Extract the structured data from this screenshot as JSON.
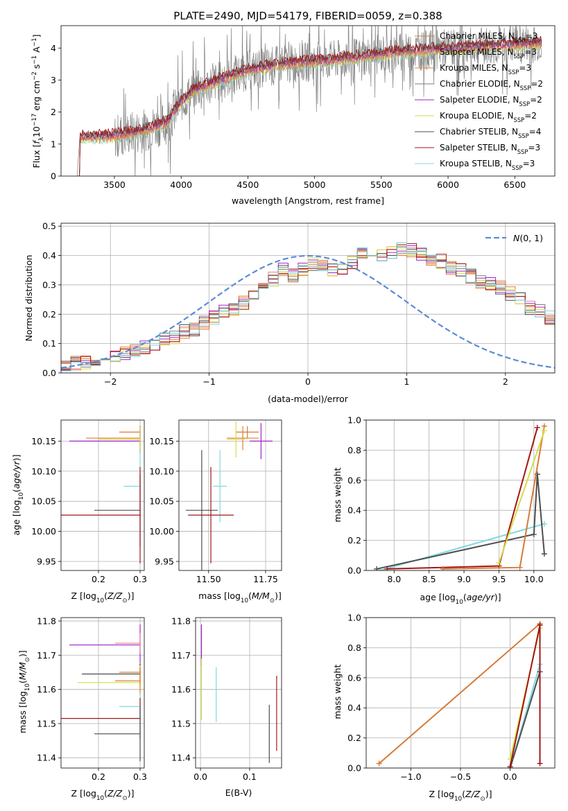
{
  "title": "PLATE=2490, MJD=54179, FIBERID=0059, z=0.388",
  "colors": {
    "chabrier_miles": "#d67a37",
    "salpeter_miles": "#e87f9a",
    "kroupa_miles": "#e07b2a",
    "chabrier_elodie": "#7b7b7b",
    "salpeter_elodie": "#a023c4",
    "kroupa_elodie": "#d6dc47",
    "chabrier_stelib": "#4d4d4d",
    "salpeter_stelib": "#a31515",
    "kroupa_stelib": "#7fd9df",
    "data": "#808080",
    "gaussian": "#5b8bd6"
  },
  "chart_data": [
    {
      "type": "line",
      "id": "spectrum",
      "title": "PLATE=2490, MJD=54179, FIBERID=0059, z=0.388",
      "xlabel": "wavelength [Angstrom, rest frame]",
      "ylabel_parts": [
        "Flux [",
        "f",
        "λ",
        "10",
        "−17",
        " erg cm",
        "−2",
        " s",
        "−1",
        " A",
        "−1",
        "]"
      ],
      "xlim": [
        3100,
        6800
      ],
      "ylim": [
        0,
        4.7
      ],
      "xticks": [
        3500,
        4000,
        4500,
        5000,
        5500,
        6000,
        6500
      ],
      "yticks": [
        0,
        1,
        2,
        3,
        4
      ],
      "legend": [
        {
          "pre": "Chabrier MILES, N",
          "sub": "SSP",
          "post": "=3",
          "color_key": "chabrier_miles"
        },
        {
          "pre": "Salpeter MILES, N",
          "sub": "SSP",
          "post": "=3",
          "color_key": "salpeter_miles"
        },
        {
          "pre": "Kroupa MILES, N",
          "sub": "SSP",
          "post": "=3",
          "color_key": "kroupa_miles"
        },
        {
          "pre": "Chabrier ELODIE, N",
          "sub": "SSP",
          "post": "=2",
          "color_key": "chabrier_elodie"
        },
        {
          "pre": "Salpeter ELODIE, N",
          "sub": "SSP",
          "post": "=2",
          "color_key": "salpeter_elodie"
        },
        {
          "pre": "Kroupa ELODIE, N",
          "sub": "SSP",
          "post": "=2",
          "color_key": "kroupa_elodie"
        },
        {
          "pre": "Chabrier STELIB, N",
          "sub": "SSP",
          "post": "=4",
          "color_key": "chabrier_stelib"
        },
        {
          "pre": "Salpeter STELIB, N",
          "sub": "SSP",
          "post": "=3",
          "color_key": "salpeter_stelib"
        },
        {
          "pre": "Kroupa STELIB, N",
          "sub": "SSP",
          "post": "=3",
          "color_key": "kroupa_stelib"
        }
      ],
      "legend_loc": "upper right",
      "continuum_model": {
        "x": [
          3220,
          3500,
          3700,
          3900,
          4000,
          4100,
          4300,
          4500,
          4700,
          4900,
          5100,
          5300,
          5500,
          5700,
          5900,
          6100,
          6300,
          6500,
          6700
        ],
        "y": [
          1.2,
          1.25,
          1.4,
          1.7,
          2.3,
          2.7,
          3.0,
          3.3,
          3.45,
          3.55,
          3.6,
          3.7,
          3.8,
          3.9,
          3.95,
          4.0,
          4.05,
          4.1,
          4.15
        ]
      }
    },
    {
      "type": "histogram",
      "id": "residuals",
      "xlabel": "(data-model)/error",
      "ylabel": "Normed distribution",
      "xlim": [
        -2.5,
        2.5
      ],
      "ylim": [
        0,
        0.51
      ],
      "xticks": [
        -2,
        -1,
        0,
        1,
        2
      ],
      "yticks": [
        0.0,
        0.1,
        0.2,
        0.3,
        0.4,
        0.5
      ],
      "grid": true,
      "legend": [
        {
          "label": "N(0, 1)",
          "style": "dashed",
          "color_key": "gaussian"
        }
      ],
      "legend_loc": "upper right",
      "bin_width": 0.1,
      "bin_start": -2.5,
      "reference_values": [
        0.03,
        0.032,
        0.035,
        0.045,
        0.05,
        0.057,
        0.065,
        0.075,
        0.085,
        0.1,
        0.115,
        0.12,
        0.14,
        0.15,
        0.17,
        0.19,
        0.21,
        0.22,
        0.24,
        0.27,
        0.29,
        0.32,
        0.35,
        0.33,
        0.35,
        0.37,
        0.36,
        0.35,
        0.36,
        0.38,
        0.41,
        0.42,
        0.4,
        0.41,
        0.42,
        0.42,
        0.4,
        0.39,
        0.38,
        0.36,
        0.35,
        0.33,
        0.31,
        0.3,
        0.29,
        0.27,
        0.25,
        0.22,
        0.21,
        0.19,
        0.18,
        0.16,
        0.14,
        0.13,
        0.12,
        0.1,
        0.09,
        0.08,
        0.07,
        0.06,
        0.055,
        0.05,
        0.045,
        0.04,
        0.035,
        0.03,
        0.03,
        0.028,
        0.027,
        0.026,
        0.025,
        0.025,
        0.025
      ]
    },
    {
      "type": "errorbar",
      "id": "age_vs_Z",
      "xlabel_parts": [
        "Z [log",
        "10",
        "(",
        "Z/Z",
        "⊙",
        ")]"
      ],
      "ylabel_parts": [
        "age  [log",
        "10",
        "(",
        "age/yr",
        ")]"
      ],
      "xlim": [
        0.11,
        0.31
      ],
      "ylim": [
        9.935,
        10.185
      ],
      "xticks": [
        0.2,
        0.3
      ],
      "yticks": [
        9.95,
        10.0,
        10.05,
        10.1,
        10.15
      ],
      "points": [
        {
          "x": 0.3,
          "y": 10.165,
          "xerr": [
            0.05,
            0.0
          ],
          "yerr": [
            0.01,
            0.01
          ],
          "color_key": "chabrier_miles"
        },
        {
          "x": 0.3,
          "y": 10.155,
          "xerr": [
            0.13,
            0.0
          ],
          "yerr": [
            0.02,
            0.02
          ],
          "color_key": "kroupa_miles"
        },
        {
          "x": 0.3,
          "y": 10.15,
          "xerr": [
            0.17,
            0.0
          ],
          "yerr": [
            0.02,
            0.02
          ],
          "color_key": "salpeter_elodie"
        },
        {
          "x": 0.3,
          "y": 10.153,
          "xerr": [
            0.1,
            0.0
          ],
          "yerr": [
            0.02,
            0.02
          ],
          "color_key": "kroupa_elodie"
        },
        {
          "x": 0.3,
          "y": 10.075,
          "xerr": [
            0.04,
            0.0
          ],
          "yerr": [
            0.06,
            0.06
          ],
          "color_key": "kroupa_stelib"
        },
        {
          "x": 0.3,
          "y": 10.035,
          "xerr": [
            0.11,
            0.0
          ],
          "yerr": [
            0.06,
            0.06
          ],
          "color_key": "chabrier_stelib"
        },
        {
          "x": 0.3,
          "y": 10.027,
          "xerr": [
            0.19,
            0.0
          ],
          "yerr": [
            0.08,
            0.08
          ],
          "color_key": "salpeter_stelib"
        }
      ]
    },
    {
      "type": "errorbar",
      "id": "age_vs_mass",
      "xlabel_parts": [
        "mass [log",
        "10",
        "(",
        "M/M",
        "⊙",
        ")]"
      ],
      "xlim": [
        11.37,
        11.82
      ],
      "ylim": [
        9.935,
        10.185
      ],
      "xticks": [
        11.5,
        11.75
      ],
      "yticks": [
        9.95,
        10.0,
        10.05,
        10.1,
        10.15
      ],
      "points": [
        {
          "x": 11.67,
          "y": 10.165,
          "xerr": [
            0.05,
            0.05
          ],
          "yerr": [
            0.01,
            0.01
          ],
          "color_key": "chabrier_miles"
        },
        {
          "x": 11.65,
          "y": 10.155,
          "xerr": [
            0.07,
            0.07
          ],
          "yerr": [
            0.02,
            0.02
          ],
          "color_key": "kroupa_miles"
        },
        {
          "x": 11.73,
          "y": 10.15,
          "xerr": [
            0.05,
            0.05
          ],
          "yerr": [
            0.03,
            0.03
          ],
          "color_key": "salpeter_elodie"
        },
        {
          "x": 11.62,
          "y": 10.153,
          "xerr": [
            0.04,
            0.04
          ],
          "yerr": [
            0.03,
            0.03
          ],
          "color_key": "kroupa_elodie"
        },
        {
          "x": 11.55,
          "y": 10.075,
          "xerr": [
            0.03,
            0.03
          ],
          "yerr": [
            0.06,
            0.06
          ],
          "color_key": "kroupa_stelib"
        },
        {
          "x": 11.47,
          "y": 10.035,
          "xerr": [
            0.07,
            0.07
          ],
          "yerr": [
            0.1,
            0.1
          ],
          "color_key": "chabrier_stelib"
        },
        {
          "x": 11.51,
          "y": 10.027,
          "xerr": [
            0.1,
            0.1
          ],
          "yerr": [
            0.08,
            0.08
          ],
          "color_key": "salpeter_stelib"
        }
      ]
    },
    {
      "type": "line",
      "id": "weight_vs_age",
      "xlabel_parts": [
        "age  [log",
        "10",
        "(",
        "age/yr",
        ")]"
      ],
      "ylabel": "mass weight",
      "xlim": [
        7.6,
        10.3
      ],
      "ylim": [
        0,
        1
      ],
      "xticks": [
        8.0,
        8.5,
        9.0,
        9.5,
        10.0
      ],
      "yticks": [
        0.0,
        0.2,
        0.4,
        0.6,
        0.8,
        1.0
      ],
      "grid": true,
      "series": [
        {
          "x": [
            7.8,
            10.15
          ],
          "y": [
            0.0,
            0.31
          ],
          "color_key": "kroupa_stelib"
        },
        {
          "x": [
            7.75,
            10.0,
            10.05,
            10.15
          ],
          "y": [
            0.01,
            0.24,
            0.64,
            0.11
          ],
          "color_key": "chabrier_stelib"
        },
        {
          "x": [
            7.9,
            9.5,
            10.05
          ],
          "y": [
            0.01,
            0.03,
            0.95
          ],
          "color_key": "salpeter_stelib"
        },
        {
          "x": [
            8.7,
            9.8,
            10.15
          ],
          "y": [
            0.01,
            0.02,
            0.96
          ],
          "color_key": "chabrier_miles"
        },
        {
          "x": [
            9.5,
            10.15
          ],
          "y": [
            0.05,
            0.93
          ],
          "color_key": "kroupa_elodie"
        }
      ]
    },
    {
      "type": "errorbar",
      "id": "mass_vs_Z",
      "xlabel_parts": [
        "Z [log",
        "10",
        "(",
        "Z/Z",
        "⊙",
        ")]"
      ],
      "ylabel_parts": [
        "mass [log",
        "10",
        "(",
        "M/M",
        "⊙",
        ")]"
      ],
      "xlim": [
        0.11,
        0.31
      ],
      "ylim": [
        11.37,
        11.81
      ],
      "xticks": [
        0.2,
        0.3
      ],
      "yticks": [
        11.4,
        11.5,
        11.6,
        11.7,
        11.8
      ],
      "points": [
        {
          "x": 0.3,
          "y": 11.73,
          "xerr": [
            0.17,
            0.0
          ],
          "yerr": [
            0.06,
            0.06
          ],
          "color_key": "salpeter_elodie"
        },
        {
          "x": 0.3,
          "y": 11.735,
          "xerr": [
            0.06,
            0.0
          ],
          "yerr": [
            0.03,
            0.03
          ],
          "color_key": "salpeter_miles"
        },
        {
          "x": 0.3,
          "y": 11.65,
          "xerr": [
            0.05,
            0.0
          ],
          "yerr": [
            0.03,
            0.03
          ],
          "color_key": "chabrier_miles"
        },
        {
          "x": 0.3,
          "y": 11.645,
          "xerr": [
            0.14,
            0.0
          ],
          "yerr": [
            0.03,
            0.03
          ],
          "color_key": "chabrier_stelib"
        },
        {
          "x": 0.3,
          "y": 11.62,
          "xerr": [
            0.15,
            0.0
          ],
          "yerr": [
            0.05,
            0.05
          ],
          "color_key": "kroupa_elodie"
        },
        {
          "x": 0.3,
          "y": 11.625,
          "xerr": [
            0.06,
            0.0
          ],
          "yerr": [
            0.04,
            0.04
          ],
          "color_key": "kroupa_miles"
        },
        {
          "x": 0.3,
          "y": 11.55,
          "xerr": [
            0.05,
            0.0
          ],
          "yerr": [
            0.04,
            0.04
          ],
          "color_key": "kroupa_stelib"
        },
        {
          "x": 0.3,
          "y": 11.515,
          "xerr": [
            0.19,
            0.0
          ],
          "yerr": [
            0.06,
            0.06
          ],
          "color_key": "salpeter_stelib"
        },
        {
          "x": 0.3,
          "y": 11.47,
          "xerr": [
            0.11,
            0.0
          ],
          "yerr": [
            0.08,
            0.08
          ],
          "color_key": "chabrier_stelib"
        }
      ]
    },
    {
      "type": "errorbar",
      "id": "mass_vs_ebv",
      "xlabel": "E(B-V)",
      "xlim": [
        -0.01,
        0.165
      ],
      "ylim": [
        11.37,
        11.81
      ],
      "xticks": [
        0.0,
        0.1
      ],
      "yticks": [
        11.4,
        11.5,
        11.6,
        11.7,
        11.8
      ],
      "points": [
        {
          "x": 0.002,
          "y": 11.73,
          "yerr": [
            0.06,
            0.06
          ],
          "color_key": "salpeter_elodie"
        },
        {
          "x": 0.002,
          "y": 11.6,
          "yerr": [
            0.09,
            0.09
          ],
          "color_key": "kroupa_elodie"
        },
        {
          "x": 0.032,
          "y": 11.585,
          "yerr": [
            0.08,
            0.08
          ],
          "color_key": "kroupa_stelib"
        },
        {
          "x": 0.14,
          "y": 11.47,
          "yerr": [
            0.085,
            0.085
          ],
          "color_key": "chabrier_stelib"
        },
        {
          "x": 0.155,
          "y": 11.53,
          "yerr": [
            0.11,
            0.11
          ],
          "color_key": "salpeter_stelib"
        }
      ]
    },
    {
      "type": "line",
      "id": "weight_vs_Z",
      "xlabel_parts": [
        "Z [log",
        "10",
        "(",
        "Z/Z",
        "⊙",
        ")]"
      ],
      "ylabel": "mass weight",
      "xlim": [
        -1.45,
        0.45
      ],
      "ylim": [
        0,
        1
      ],
      "xticks": [
        -1.0,
        -0.5,
        0.0
      ],
      "yticks": [
        0.0,
        0.2,
        0.4,
        0.6,
        0.8,
        1.0
      ],
      "grid": true,
      "series": [
        {
          "x": [
            -1.32,
            0.3
          ],
          "y": [
            0.03,
            0.96
          ],
          "color_key": "chabrier_miles"
        },
        {
          "x": [
            0.0,
            0.3
          ],
          "y": [
            0.0,
            0.69
          ],
          "color_key": "kroupa_stelib"
        },
        {
          "x": [
            0.0,
            0.3
          ],
          "y": [
            0.0,
            0.64
          ],
          "color_key": "chabrier_stelib"
        },
        {
          "x": [
            0.0,
            0.3
          ],
          "y": [
            0.06,
            0.93
          ],
          "color_key": "kroupa_elodie"
        },
        {
          "x": [
            0.0,
            0.3
          ],
          "y": [
            0.01,
            0.95
          ],
          "color_key": "salpeter_stelib"
        },
        {
          "x": [
            0.3,
            0.3
          ],
          "y": [
            0.03,
            0.95
          ],
          "color_key": "salpeter_stelib"
        }
      ]
    }
  ]
}
